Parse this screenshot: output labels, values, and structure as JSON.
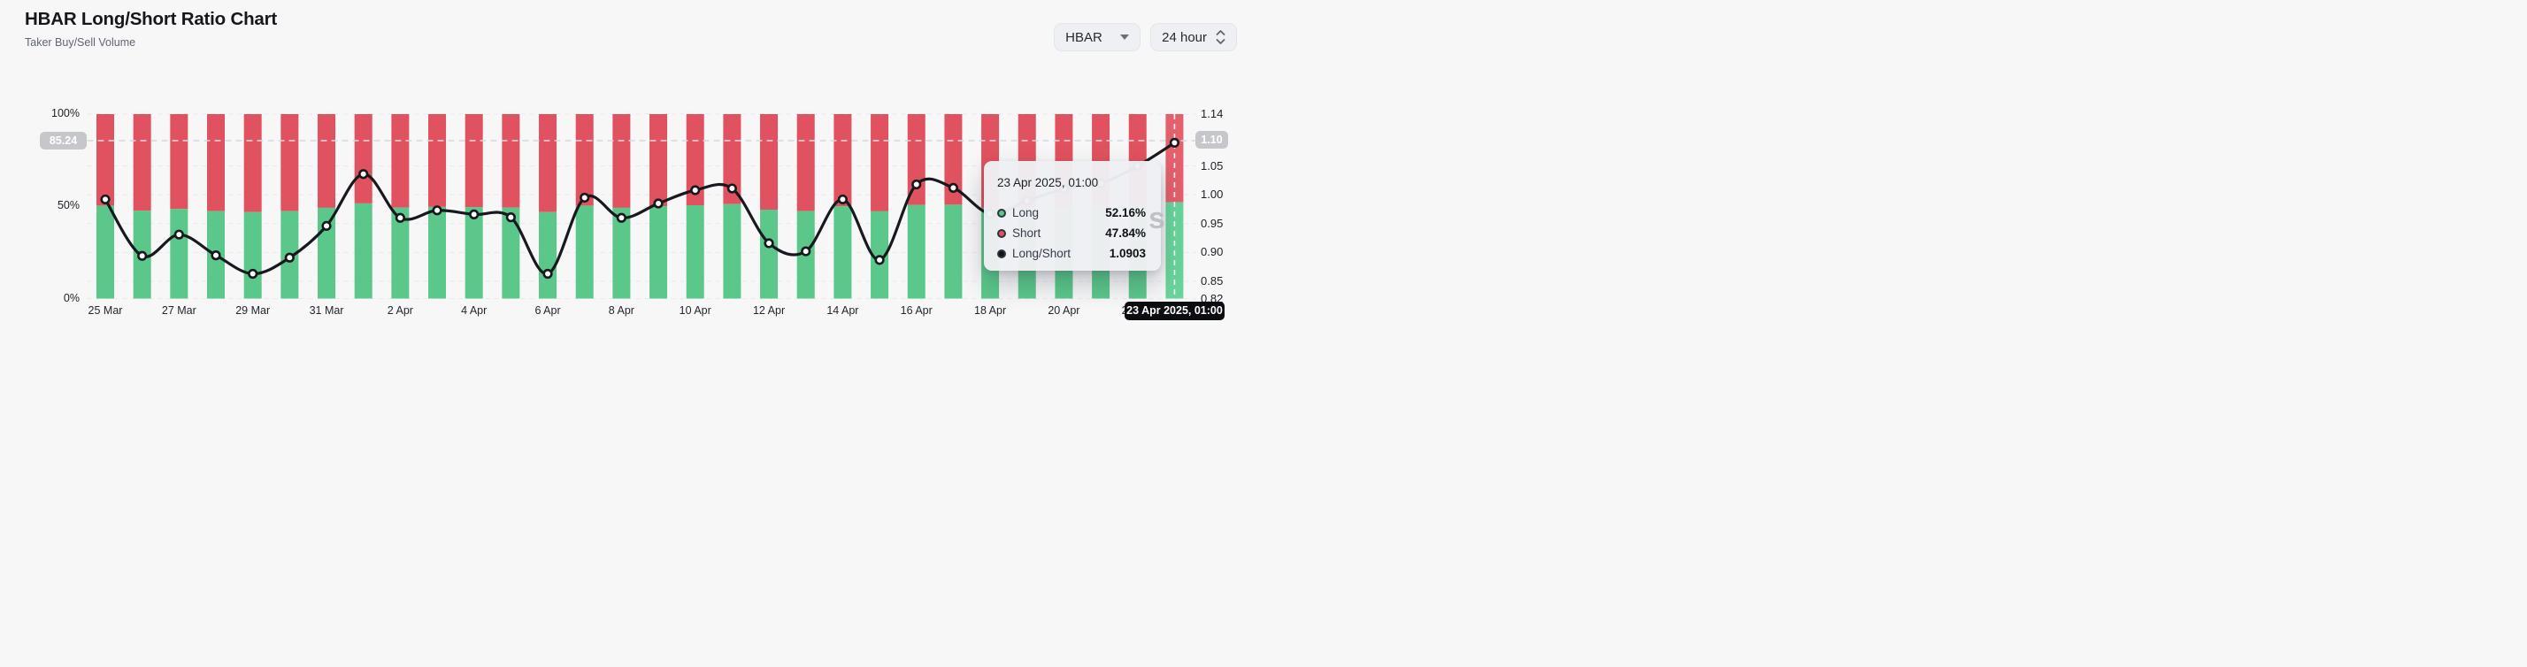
{
  "header": {
    "title": "HBAR Long/Short Ratio Chart",
    "subtitle": "Taker Buy/Sell Volume"
  },
  "controls": {
    "symbol": {
      "value": "HBAR"
    },
    "interval": {
      "value": "24 hour"
    }
  },
  "chart_data": {
    "type": "bar",
    "subtype": "stacked-percent-bars-with-ratio-line",
    "categories": [
      "25 Mar",
      "26 Mar",
      "27 Mar",
      "28 Mar",
      "29 Mar",
      "30 Mar",
      "31 Mar",
      "1 Apr",
      "2 Apr",
      "3 Apr",
      "4 Apr",
      "5 Apr",
      "6 Apr",
      "7 Apr",
      "8 Apr",
      "9 Apr",
      "10 Apr",
      "11 Apr",
      "12 Apr",
      "13 Apr",
      "14 Apr",
      "15 Apr",
      "16 Apr",
      "17 Apr",
      "18 Apr",
      "19 Apr",
      "20 Apr",
      "21 Apr",
      "22 Apr",
      "23 Apr"
    ],
    "series": [
      {
        "name": "Long",
        "type": "bar",
        "unit": "%",
        "color": "#5bc78a",
        "values": [
          50.4,
          47.6,
          48.6,
          47.4,
          46.9,
          47.4,
          49.2,
          51.6,
          49.3,
          49.7,
          49.5,
          49.3,
          46.9,
          50.4,
          49.2,
          50.1,
          50.6,
          51.2,
          48.2,
          47.4,
          50.1,
          47.3,
          50.8,
          50.9,
          49.2,
          49.0,
          48.5,
          49.5,
          50.5,
          52.16
        ]
      },
      {
        "name": "Short",
        "type": "bar",
        "unit": "%",
        "color": "#e0525f",
        "values": [
          49.6,
          52.4,
          51.4,
          52.6,
          53.1,
          52.6,
          50.8,
          48.4,
          50.7,
          50.3,
          50.5,
          50.7,
          53.1,
          49.6,
          50.8,
          49.9,
          49.4,
          48.8,
          51.8,
          52.6,
          49.9,
          52.7,
          49.2,
          49.1,
          50.8,
          51.0,
          51.5,
          50.5,
          49.5,
          47.84
        ]
      },
      {
        "name": "Long/Short",
        "type": "line",
        "color": "#17191e",
        "values": [
          0.992,
          0.894,
          0.931,
          0.895,
          0.863,
          0.891,
          0.946,
          1.036,
          0.96,
          0.973,
          0.966,
          0.961,
          0.863,
          0.995,
          0.96,
          0.985,
          1.008,
          1.011,
          0.916,
          0.902,
          0.992,
          0.887,
          1.018,
          1.012,
          0.967,
          0.99,
          1.01,
          1.02,
          1.05,
          1.0903
        ]
      }
    ],
    "x_tick_labels": [
      "25 Mar",
      "27 Mar",
      "29 Mar",
      "31 Mar",
      "2 Apr",
      "4 Apr",
      "6 Apr",
      "8 Apr",
      "10 Apr",
      "12 Apr",
      "14 Apr",
      "16 Apr",
      "18 Apr",
      "20 Apr",
      "22 Apr"
    ],
    "left_axis": {
      "ticks": [
        "100%",
        "50%",
        "0%"
      ],
      "min": 0,
      "max": 100
    },
    "right_axis": {
      "ticks": [
        1.14,
        1.05,
        1.0,
        0.95,
        0.9,
        0.85,
        0.82
      ],
      "min": 0.82,
      "max": 1.14
    },
    "grid": "dashed-horizontal",
    "legend_position": "none",
    "highlight_index": 29,
    "colors": {
      "long": "#5bc78a",
      "long_highlight": "#69d49b",
      "short": "#e0525f",
      "short_highlight": "#e4606c",
      "line": "#17191e",
      "grid": "#e9e9ec",
      "crosshair_h": "#d6d9de",
      "crosshair_v": "#f2f4f6"
    }
  },
  "crosshair": {
    "y_left_label": "85.24",
    "y_right_label": "1.10",
    "x_label": "23 Apr 2025, 01:00"
  },
  "tooltip": {
    "title": "23 Apr 2025, 01:00",
    "rows": [
      {
        "label": "Long",
        "value": "52.16%",
        "marker_color": "#5bc78a"
      },
      {
        "label": "Short",
        "value": "47.84%",
        "marker_color": "#e0525f"
      },
      {
        "label": "Long/Short",
        "value": "1.0903",
        "marker_color": "#111318"
      }
    ]
  },
  "watermark": {
    "text": "s"
  }
}
